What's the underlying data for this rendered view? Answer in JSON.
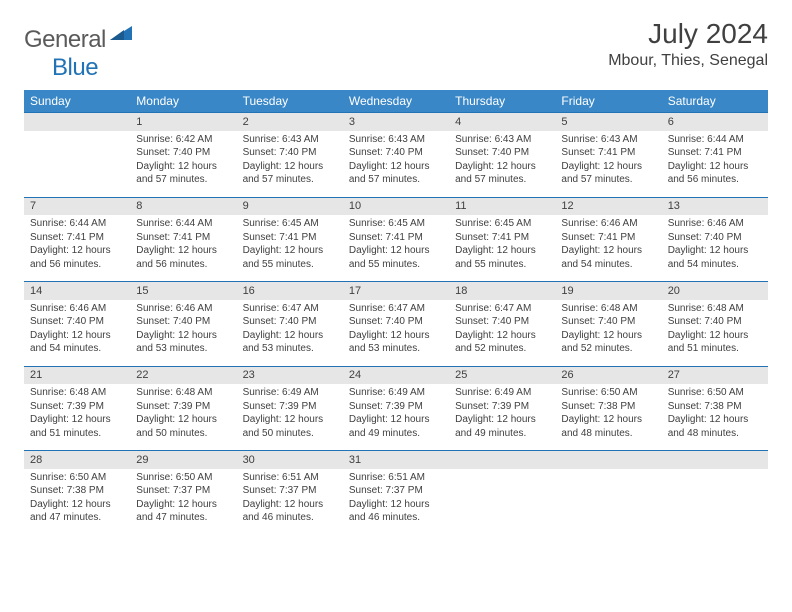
{
  "brand": {
    "part1": "General",
    "part2": "Blue"
  },
  "title": "July 2024",
  "location": "Mbour, Thies, Senegal",
  "colors": {
    "header_bg": "#3a87c7",
    "header_fg": "#ffffff",
    "daynum_bg": "#e6e6e6",
    "rule": "#2273b5",
    "text": "#404040",
    "brand_grey": "#5a5a5a",
    "brand_blue": "#2273b5"
  },
  "day_names": [
    "Sunday",
    "Monday",
    "Tuesday",
    "Wednesday",
    "Thursday",
    "Friday",
    "Saturday"
  ],
  "weeks": [
    {
      "nums": [
        "",
        "1",
        "2",
        "3",
        "4",
        "5",
        "6"
      ],
      "cells": [
        null,
        {
          "sunrise": "6:42 AM",
          "sunset": "7:40 PM",
          "daylight": "12 hours and 57 minutes."
        },
        {
          "sunrise": "6:43 AM",
          "sunset": "7:40 PM",
          "daylight": "12 hours and 57 minutes."
        },
        {
          "sunrise": "6:43 AM",
          "sunset": "7:40 PM",
          "daylight": "12 hours and 57 minutes."
        },
        {
          "sunrise": "6:43 AM",
          "sunset": "7:40 PM",
          "daylight": "12 hours and 57 minutes."
        },
        {
          "sunrise": "6:43 AM",
          "sunset": "7:41 PM",
          "daylight": "12 hours and 57 minutes."
        },
        {
          "sunrise": "6:44 AM",
          "sunset": "7:41 PM",
          "daylight": "12 hours and 56 minutes."
        }
      ]
    },
    {
      "nums": [
        "7",
        "8",
        "9",
        "10",
        "11",
        "12",
        "13"
      ],
      "cells": [
        {
          "sunrise": "6:44 AM",
          "sunset": "7:41 PM",
          "daylight": "12 hours and 56 minutes."
        },
        {
          "sunrise": "6:44 AM",
          "sunset": "7:41 PM",
          "daylight": "12 hours and 56 minutes."
        },
        {
          "sunrise": "6:45 AM",
          "sunset": "7:41 PM",
          "daylight": "12 hours and 55 minutes."
        },
        {
          "sunrise": "6:45 AM",
          "sunset": "7:41 PM",
          "daylight": "12 hours and 55 minutes."
        },
        {
          "sunrise": "6:45 AM",
          "sunset": "7:41 PM",
          "daylight": "12 hours and 55 minutes."
        },
        {
          "sunrise": "6:46 AM",
          "sunset": "7:41 PM",
          "daylight": "12 hours and 54 minutes."
        },
        {
          "sunrise": "6:46 AM",
          "sunset": "7:40 PM",
          "daylight": "12 hours and 54 minutes."
        }
      ]
    },
    {
      "nums": [
        "14",
        "15",
        "16",
        "17",
        "18",
        "19",
        "20"
      ],
      "cells": [
        {
          "sunrise": "6:46 AM",
          "sunset": "7:40 PM",
          "daylight": "12 hours and 54 minutes."
        },
        {
          "sunrise": "6:46 AM",
          "sunset": "7:40 PM",
          "daylight": "12 hours and 53 minutes."
        },
        {
          "sunrise": "6:47 AM",
          "sunset": "7:40 PM",
          "daylight": "12 hours and 53 minutes."
        },
        {
          "sunrise": "6:47 AM",
          "sunset": "7:40 PM",
          "daylight": "12 hours and 53 minutes."
        },
        {
          "sunrise": "6:47 AM",
          "sunset": "7:40 PM",
          "daylight": "12 hours and 52 minutes."
        },
        {
          "sunrise": "6:48 AM",
          "sunset": "7:40 PM",
          "daylight": "12 hours and 52 minutes."
        },
        {
          "sunrise": "6:48 AM",
          "sunset": "7:40 PM",
          "daylight": "12 hours and 51 minutes."
        }
      ]
    },
    {
      "nums": [
        "21",
        "22",
        "23",
        "24",
        "25",
        "26",
        "27"
      ],
      "cells": [
        {
          "sunrise": "6:48 AM",
          "sunset": "7:39 PM",
          "daylight": "12 hours and 51 minutes."
        },
        {
          "sunrise": "6:48 AM",
          "sunset": "7:39 PM",
          "daylight": "12 hours and 50 minutes."
        },
        {
          "sunrise": "6:49 AM",
          "sunset": "7:39 PM",
          "daylight": "12 hours and 50 minutes."
        },
        {
          "sunrise": "6:49 AM",
          "sunset": "7:39 PM",
          "daylight": "12 hours and 49 minutes."
        },
        {
          "sunrise": "6:49 AM",
          "sunset": "7:39 PM",
          "daylight": "12 hours and 49 minutes."
        },
        {
          "sunrise": "6:50 AM",
          "sunset": "7:38 PM",
          "daylight": "12 hours and 48 minutes."
        },
        {
          "sunrise": "6:50 AM",
          "sunset": "7:38 PM",
          "daylight": "12 hours and 48 minutes."
        }
      ]
    },
    {
      "nums": [
        "28",
        "29",
        "30",
        "31",
        "",
        "",
        ""
      ],
      "cells": [
        {
          "sunrise": "6:50 AM",
          "sunset": "7:38 PM",
          "daylight": "12 hours and 47 minutes."
        },
        {
          "sunrise": "6:50 AM",
          "sunset": "7:37 PM",
          "daylight": "12 hours and 47 minutes."
        },
        {
          "sunrise": "6:51 AM",
          "sunset": "7:37 PM",
          "daylight": "12 hours and 46 minutes."
        },
        {
          "sunrise": "6:51 AM",
          "sunset": "7:37 PM",
          "daylight": "12 hours and 46 minutes."
        },
        null,
        null,
        null
      ]
    }
  ],
  "labels": {
    "sunrise": "Sunrise: ",
    "sunset": "Sunset: ",
    "daylight": "Daylight: "
  }
}
